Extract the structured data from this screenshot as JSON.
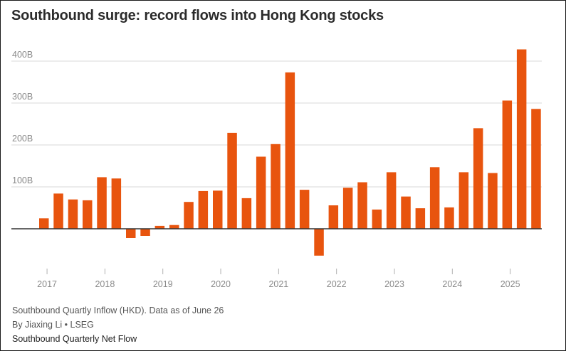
{
  "title": "Southbound surge: record flows into Hong Kong stocks",
  "footer": {
    "note": "Southbound Quartly Inflow (HKD). Data as of June 26",
    "byline": "By Jiaxing Li • LSEG",
    "series_label": "Southbound Quarterly Net Flow"
  },
  "colors": {
    "bar": "#e8540e",
    "grid": "#d9d9d9",
    "zero_line": "#333333",
    "axis_text": "#8a8a8a"
  },
  "chart_data": {
    "type": "bar",
    "unit": "HKD",
    "y_ticks": [
      {
        "value": 100,
        "label": "100B"
      },
      {
        "value": 200,
        "label": "200B"
      },
      {
        "value": 300,
        "label": "300B"
      },
      {
        "value": 400,
        "label": "400B"
      }
    ],
    "ylim": [
      -70,
      430
    ],
    "x_ticks": [
      {
        "year": 2017,
        "label": "2017"
      },
      {
        "year": 2018,
        "label": "2018"
      },
      {
        "year": 2019,
        "label": "2019"
      },
      {
        "year": 2020,
        "label": "2020"
      },
      {
        "year": 2021,
        "label": "2021"
      },
      {
        "year": 2022,
        "label": "2022"
      },
      {
        "year": 2023,
        "label": "2023"
      },
      {
        "year": 2024,
        "label": "2024"
      },
      {
        "year": 2025,
        "label": "2025"
      }
    ],
    "categories": [
      "2016 Q4",
      "2017 Q1",
      "2017 Q2",
      "2017 Q3",
      "2017 Q4",
      "2018 Q1",
      "2018 Q2",
      "2018 Q3",
      "2018 Q4",
      "2019 Q1",
      "2019 Q2",
      "2019 Q3",
      "2019 Q4",
      "2020 Q1",
      "2020 Q2",
      "2020 Q3",
      "2020 Q4",
      "2021 Q1",
      "2021 Q2",
      "2021 Q3",
      "2021 Q4",
      "2022 Q1",
      "2022 Q2",
      "2022 Q3",
      "2022 Q4",
      "2023 Q1",
      "2023 Q2",
      "2023 Q3",
      "2023 Q4",
      "2024 Q1",
      "2024 Q2",
      "2024 Q3",
      "2024 Q4",
      "2025 Q1",
      "2025 Q2"
    ],
    "values": [
      25,
      84,
      70,
      68,
      123,
      120,
      -22,
      -17,
      7,
      9,
      64,
      90,
      91,
      229,
      73,
      172,
      202,
      373,
      93,
      -64,
      56,
      98,
      111,
      46,
      135,
      77,
      49,
      147,
      51,
      135,
      240,
      133,
      306,
      428,
      286
    ]
  }
}
